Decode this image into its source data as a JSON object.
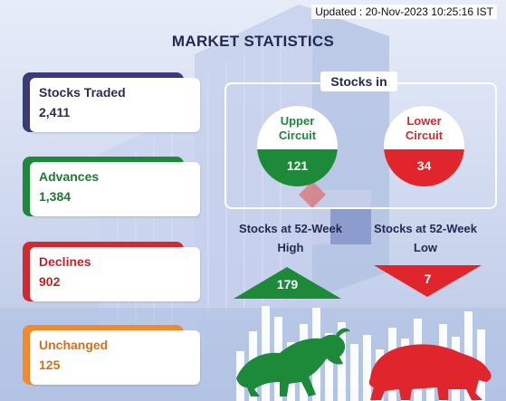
{
  "header": {
    "updated": "Updated : 20-Nov-2023 10:25:16 IST",
    "title": "MARKET STATISTICS"
  },
  "stats": {
    "traded": {
      "label": "Stocks Traded",
      "value": "2,411"
    },
    "advances": {
      "label": "Advances",
      "value": "1,384"
    },
    "declines": {
      "label": "Declines",
      "value": "902"
    },
    "unchanged": {
      "label": "Unchanged",
      "value": "125"
    }
  },
  "stocks_in": {
    "label": "Stocks in",
    "upper": {
      "label": "Upper\nCircuit",
      "value": "121"
    },
    "lower": {
      "label": "Lower\nCircuit",
      "value": "34"
    }
  },
  "week52": {
    "high": {
      "label": "Stocks at 52-Week High",
      "value": "179"
    },
    "low": {
      "label": "Stocks at 52-Week Low",
      "value": "7"
    }
  },
  "colors": {
    "navy": "#232a52",
    "green": "#1d8a3a",
    "red": "#d32a2f",
    "orange": "#f08a2c",
    "purple": "#3d3a7a"
  },
  "icons": [
    "bull-icon",
    "bear-icon",
    "building-background"
  ]
}
